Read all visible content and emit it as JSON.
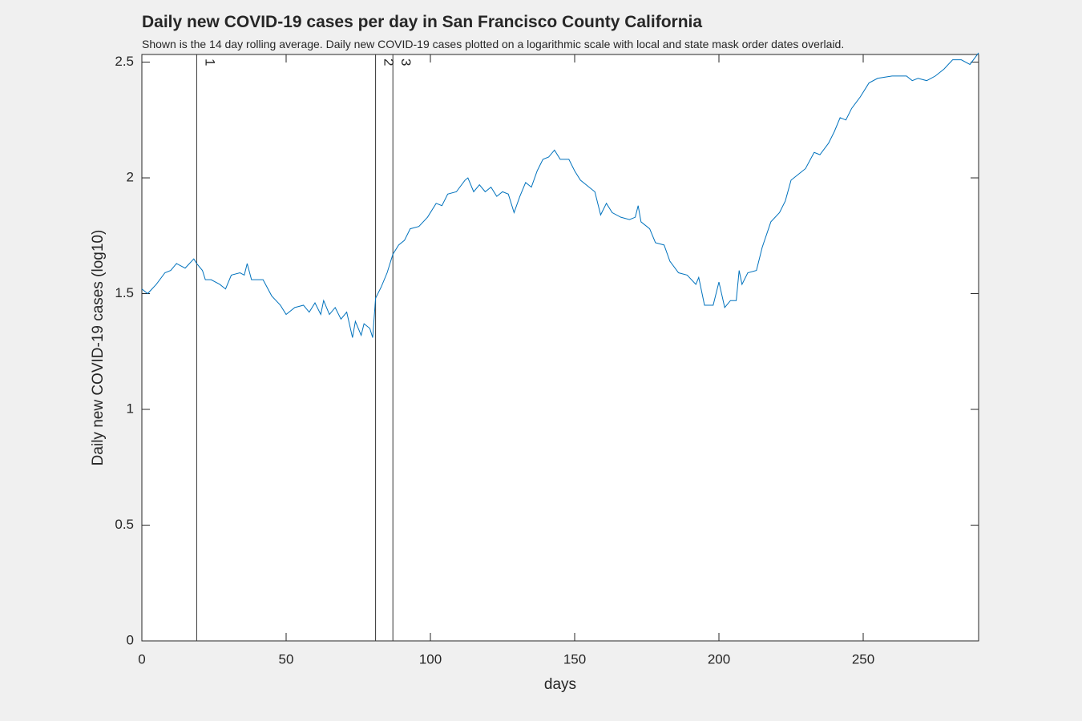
{
  "chart_data": {
    "type": "line",
    "title": "Daily new COVID-19 cases per day in San Francisco County California",
    "subtitle": "Shown is the 14 day rolling average. Daily new COVID-19 cases plotted on a logarithmic scale with local and state mask order dates overlaid.",
    "xlabel": "days",
    "ylabel": "Daily new COVID-19 cases (log10)",
    "color": "#0072bd",
    "x": [
      0,
      2,
      5,
      8,
      10,
      12,
      15,
      18,
      19,
      21,
      22,
      24,
      27,
      29,
      31,
      34,
      35.5,
      36.5,
      38,
      42,
      45,
      48,
      50,
      53,
      56,
      58,
      60,
      62,
      63,
      65,
      67,
      69,
      71,
      73,
      74,
      76,
      77,
      79,
      80,
      81,
      83,
      85,
      87,
      89,
      91,
      93,
      96,
      99,
      102,
      104,
      106,
      109,
      112,
      113,
      115,
      117,
      119,
      121,
      123,
      125,
      127,
      129,
      131,
      133,
      135,
      137,
      139,
      141,
      143,
      145,
      148,
      150,
      152,
      155,
      157,
      159,
      161,
      163,
      166,
      169,
      171,
      172,
      173,
      176,
      178,
      181,
      183,
      186,
      189,
      192,
      193,
      195,
      198,
      200,
      202,
      204,
      206,
      207,
      208,
      210,
      213,
      215,
      218,
      221,
      223,
      225,
      228,
      230,
      233,
      235,
      238,
      240,
      242,
      244,
      246,
      249,
      252,
      255,
      260,
      265,
      267,
      269,
      272,
      275,
      278,
      281,
      284,
      287,
      290
    ],
    "values": [
      1.52,
      1.5,
      1.54,
      1.59,
      1.6,
      1.63,
      1.61,
      1.65,
      1.63,
      1.6,
      1.56,
      1.56,
      1.54,
      1.52,
      1.58,
      1.59,
      1.58,
      1.63,
      1.56,
      1.56,
      1.49,
      1.45,
      1.41,
      1.44,
      1.45,
      1.42,
      1.46,
      1.41,
      1.47,
      1.41,
      1.44,
      1.39,
      1.42,
      1.31,
      1.38,
      1.32,
      1.37,
      1.35,
      1.31,
      1.48,
      1.53,
      1.59,
      1.67,
      1.71,
      1.73,
      1.78,
      1.79,
      1.83,
      1.89,
      1.88,
      1.93,
      1.94,
      1.99,
      2.0,
      1.94,
      1.97,
      1.94,
      1.96,
      1.92,
      1.94,
      1.93,
      1.85,
      1.92,
      1.98,
      1.96,
      2.03,
      2.08,
      2.09,
      2.12,
      2.08,
      2.08,
      2.03,
      1.99,
      1.96,
      1.94,
      1.84,
      1.89,
      1.85,
      1.83,
      1.82,
      1.83,
      1.88,
      1.81,
      1.78,
      1.72,
      1.71,
      1.64,
      1.59,
      1.58,
      1.54,
      1.57,
      1.45,
      1.45,
      1.55,
      1.44,
      1.47,
      1.47,
      1.6,
      1.54,
      1.59,
      1.6,
      1.7,
      1.81,
      1.85,
      1.9,
      1.99,
      2.02,
      2.04,
      2.11,
      2.1,
      2.15,
      2.2,
      2.26,
      2.25,
      2.3,
      2.35,
      2.41,
      2.43,
      2.44,
      2.44,
      2.42,
      2.43,
      2.42,
      2.44,
      2.47,
      2.51,
      2.51,
      2.49,
      2.54
    ],
    "events": [
      {
        "x": 19,
        "label": "1"
      },
      {
        "x": 81,
        "label": "2"
      },
      {
        "x": 87,
        "label": "3"
      }
    ],
    "xlim": [
      0,
      290
    ],
    "ylim": [
      0,
      2.533
    ],
    "xticks": [
      0,
      50,
      100,
      150,
      200,
      250
    ],
    "yticks": [
      0,
      0.5,
      1,
      1.5,
      2,
      2.5
    ]
  }
}
